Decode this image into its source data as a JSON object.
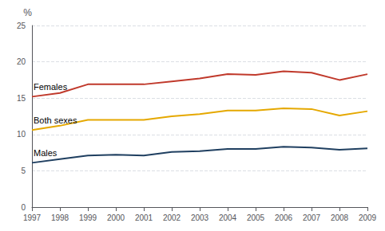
{
  "chart_data": {
    "type": "line",
    "y_label": "%",
    "x": [
      1997,
      1998,
      1999,
      2000,
      2001,
      2002,
      2003,
      2004,
      2005,
      2006,
      2007,
      2008,
      2009
    ],
    "series": [
      {
        "name": "Females",
        "color": "#c0392b",
        "values": [
          15.2,
          15.7,
          16.9,
          16.9,
          16.9,
          17.3,
          17.7,
          18.3,
          18.2,
          18.7,
          18.5,
          17.5,
          18.3
        ]
      },
      {
        "name": "Both sexes",
        "color": "#e5a800",
        "values": [
          10.6,
          11.2,
          12.0,
          12.0,
          12.0,
          12.5,
          12.8,
          13.3,
          13.3,
          13.6,
          13.5,
          12.6,
          13.2
        ]
      },
      {
        "name": "Males",
        "color": "#1f3f60",
        "values": [
          6.1,
          6.6,
          7.1,
          7.2,
          7.1,
          7.6,
          7.7,
          8.0,
          8.0,
          8.3,
          8.2,
          7.9,
          8.1
        ]
      }
    ],
    "xlim": [
      1997,
      2009
    ],
    "xticks": [
      1997,
      1998,
      1999,
      2000,
      2001,
      2002,
      2003,
      2004,
      2005,
      2006,
      2007,
      2008,
      2009
    ],
    "ylim": [
      0,
      25
    ],
    "yticks": [
      0,
      5,
      10,
      15,
      20,
      25
    ],
    "grid": true
  }
}
